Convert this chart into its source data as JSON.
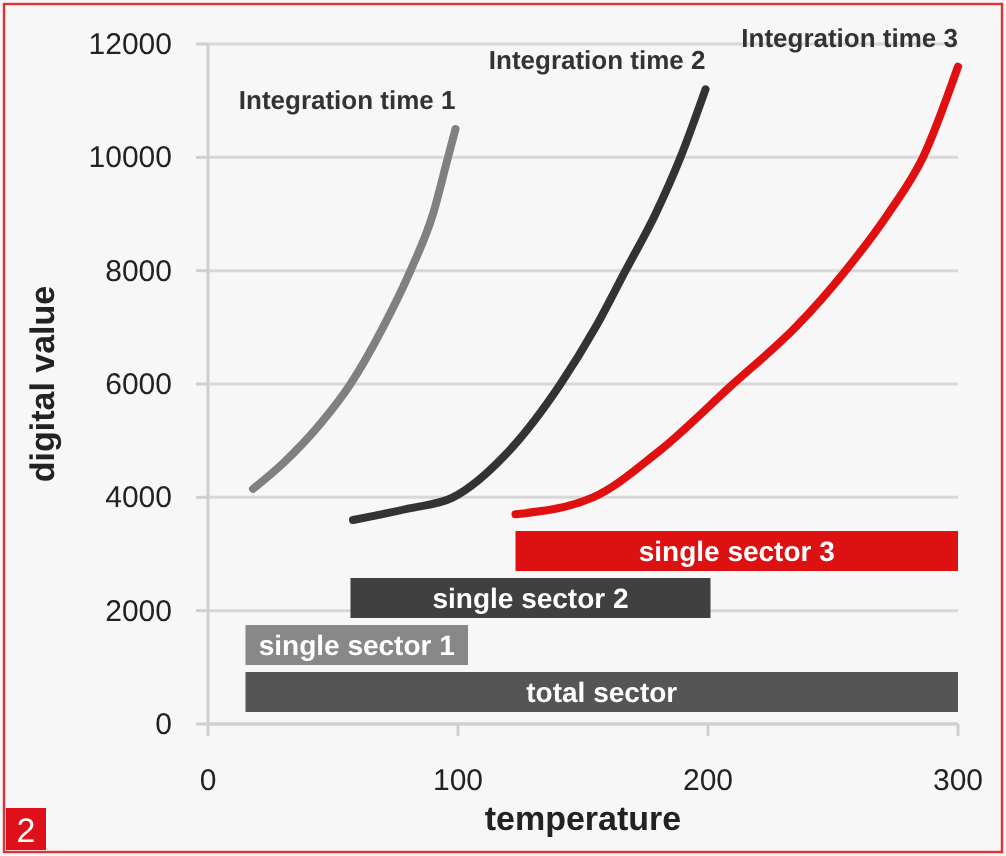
{
  "chart_data": {
    "type": "line",
    "xlabel": "temperature",
    "ylabel": "digital value",
    "xlim": [
      0,
      300
    ],
    "xticks": [
      0,
      100,
      200,
      300
    ],
    "ylim": [
      0,
      12000
    ],
    "yticks": [
      0,
      2000,
      4000,
      6000,
      8000,
      10000,
      12000
    ],
    "grid": "y",
    "line_style": "solid",
    "marker": "none",
    "series": [
      {
        "name": "Integration time 1",
        "color": "#808080",
        "x": [
          18,
          30,
          45,
          57,
          70,
          81,
          90,
          96,
          99
        ],
        "values": [
          4150,
          4600,
          5300,
          6000,
          7000,
          8000,
          9000,
          10000,
          10500
        ]
      },
      {
        "name": "Integration time 2",
        "color": "#333333",
        "x": [
          58,
          80,
          98,
          120,
          141,
          155,
          167,
          179,
          189,
          199
        ],
        "values": [
          3600,
          3800,
          4000,
          4800,
          6000,
          7000,
          8000,
          9000,
          10000,
          11200
        ]
      },
      {
        "name": "Integration time 3",
        "color": "#e01010",
        "x": [
          123,
          154,
          180,
          210,
          235,
          255,
          272,
          286,
          300
        ],
        "values": [
          3700,
          4000,
          4800,
          6000,
          7000,
          8000,
          9000,
          10000,
          11600
        ]
      }
    ],
    "bands": [
      {
        "axis": "x",
        "from": 15,
        "to": 300,
        "label": "total sector",
        "color": "#555555"
      },
      {
        "axis": "x",
        "from": 15,
        "to": 104,
        "label": "single sector 1",
        "color": "#888888"
      },
      {
        "axis": "x",
        "from": 57,
        "to": 201,
        "label": "single sector 2",
        "color": "#404040"
      },
      {
        "axis": "x",
        "from": 123,
        "to": 300,
        "label": "single sector 3",
        "color": "#dd1111"
      }
    ],
    "annotations": [
      "2"
    ]
  }
}
